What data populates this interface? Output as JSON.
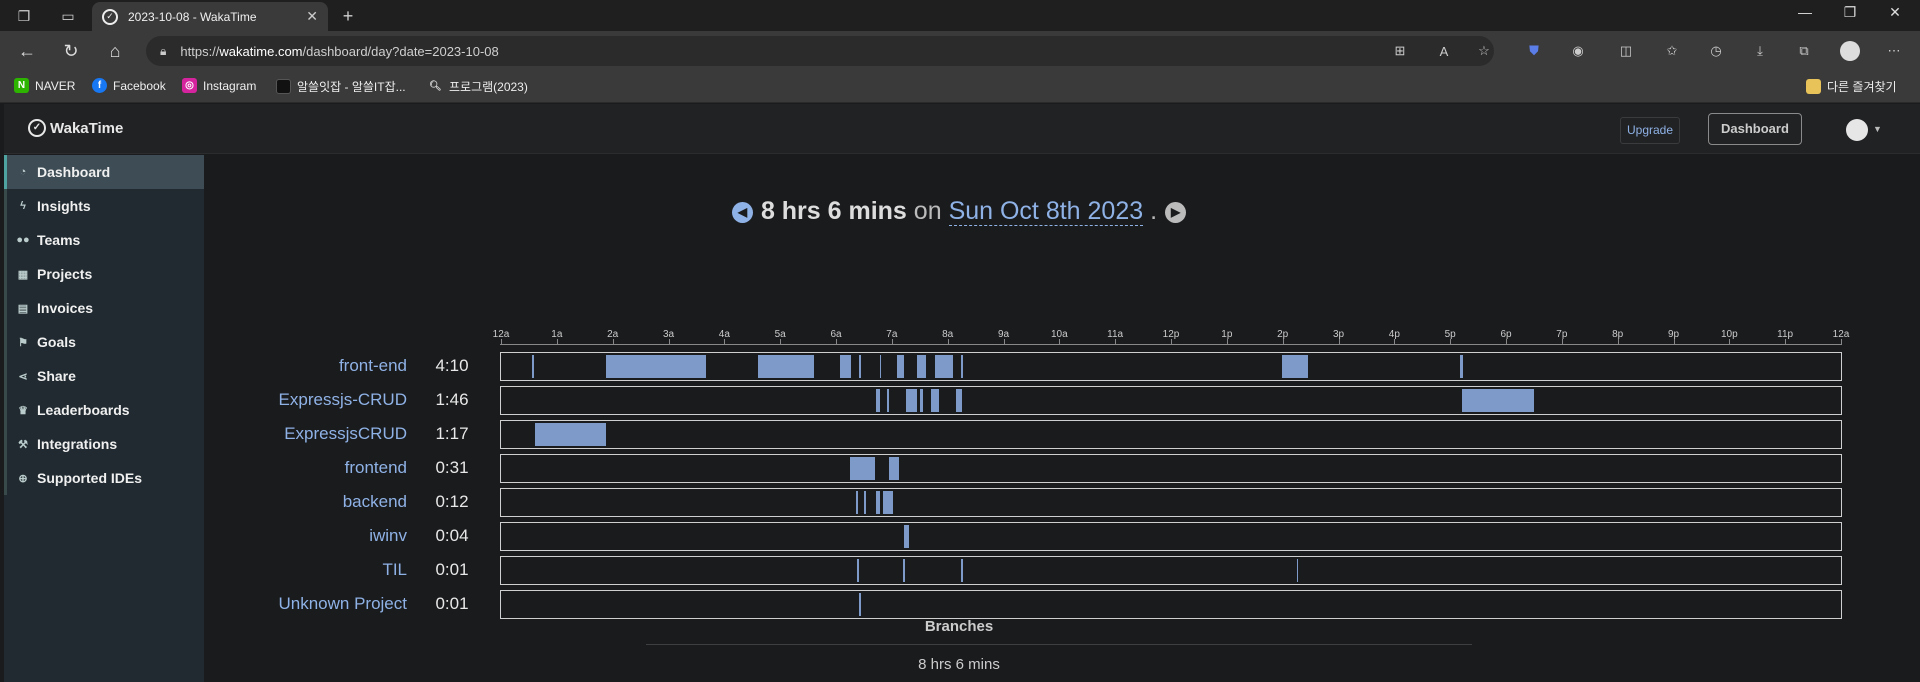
{
  "browser": {
    "tab_title": "2023-10-08 - WakaTime",
    "url_prefix": "https://",
    "url_host": "wakatime.com",
    "url_path": "/dashboard/day?date=2023-10-08",
    "bookmarks": [
      "NAVER",
      "Facebook",
      "Instagram",
      "알쓸잇잡 - 알쓸IT잡...",
      "프로그램(2023)"
    ],
    "other_bookmarks": "다른 즐겨찾기"
  },
  "app": {
    "brand": "WakaTime",
    "upgrade_label": "Upgrade",
    "dashboard_button": "Dashboard",
    "sidebar": [
      {
        "label": "Dashboard",
        "icon": "tachometer-icon"
      },
      {
        "label": "Insights",
        "icon": "bolt-icon"
      },
      {
        "label": "Teams",
        "icon": "users-icon"
      },
      {
        "label": "Projects",
        "icon": "grid-icon"
      },
      {
        "label": "Invoices",
        "icon": "file-icon"
      },
      {
        "label": "Goals",
        "icon": "flag-icon"
      },
      {
        "label": "Share",
        "icon": "share-icon"
      },
      {
        "label": "Leaderboards",
        "icon": "trophy-icon"
      },
      {
        "label": "Integrations",
        "icon": "wrench-icon"
      },
      {
        "label": "Supported IDEs",
        "icon": "plus-circle-icon"
      }
    ]
  },
  "summary": {
    "duration": "8 hrs 6 mins",
    "on": "on",
    "date": "Sun Oct 8th 2023",
    "period": "."
  },
  "timeline": {
    "hours": [
      "12a",
      "1a",
      "2a",
      "3a",
      "4a",
      "5a",
      "6a",
      "7a",
      "8a",
      "9a",
      "10a",
      "11a",
      "12p",
      "1p",
      "2p",
      "3p",
      "4p",
      "5p",
      "6p",
      "7p",
      "8p",
      "9p",
      "10p",
      "11p",
      "12a"
    ],
    "projects": [
      {
        "name": "front-end",
        "time": "4:10",
        "segments": [
          [
            0.56,
            0.6
          ],
          [
            1.88,
            3.68
          ],
          [
            4.6,
            5.6
          ],
          [
            6.08,
            6.26
          ],
          [
            6.42,
            6.45
          ],
          [
            6.78,
            6.81
          ],
          [
            7.1,
            7.22
          ],
          [
            7.45,
            7.62
          ],
          [
            7.78,
            8.1
          ],
          [
            8.24,
            8.28
          ],
          [
            13.98,
            14.46
          ],
          [
            17.18,
            17.23
          ]
        ]
      },
      {
        "name": "Expressjs-CRUD",
        "time": "1:46",
        "segments": [
          [
            6.72,
            6.78
          ],
          [
            6.92,
            6.95
          ],
          [
            7.25,
            7.45
          ],
          [
            7.5,
            7.55
          ],
          [
            7.7,
            7.85
          ],
          [
            8.15,
            8.25
          ],
          [
            17.22,
            18.5
          ]
        ]
      },
      {
        "name": "ExpressjsCRUD",
        "time": "1:17",
        "segments": [
          [
            0.6,
            1.88
          ]
        ]
      },
      {
        "name": "frontend",
        "time": "0:31",
        "segments": [
          [
            6.25,
            6.7
          ],
          [
            6.95,
            7.12
          ]
        ]
      },
      {
        "name": "backend",
        "time": "0:12",
        "segments": [
          [
            6.35,
            6.4
          ],
          [
            6.5,
            6.54
          ],
          [
            6.72,
            6.78
          ],
          [
            6.85,
            7.02
          ]
        ]
      },
      {
        "name": "iwinv",
        "time": "0:04",
        "segments": [
          [
            7.22,
            7.3
          ]
        ]
      },
      {
        "name": "TIL",
        "time": "0:01",
        "segments": [
          [
            6.38,
            6.4
          ],
          [
            7.2,
            7.22
          ],
          [
            8.24,
            8.26
          ],
          [
            14.25,
            14.27
          ]
        ]
      },
      {
        "name": "Unknown Project",
        "time": "0:01",
        "segments": [
          [
            6.42,
            6.45
          ]
        ]
      }
    ]
  },
  "branches": {
    "title": "Branches",
    "value": "8 hrs 6 mins"
  },
  "colors": {
    "accent": "#8fb2e6",
    "segment": "#7e9ac9",
    "background": "#1a1b1d",
    "sidebar": "#202a30"
  }
}
